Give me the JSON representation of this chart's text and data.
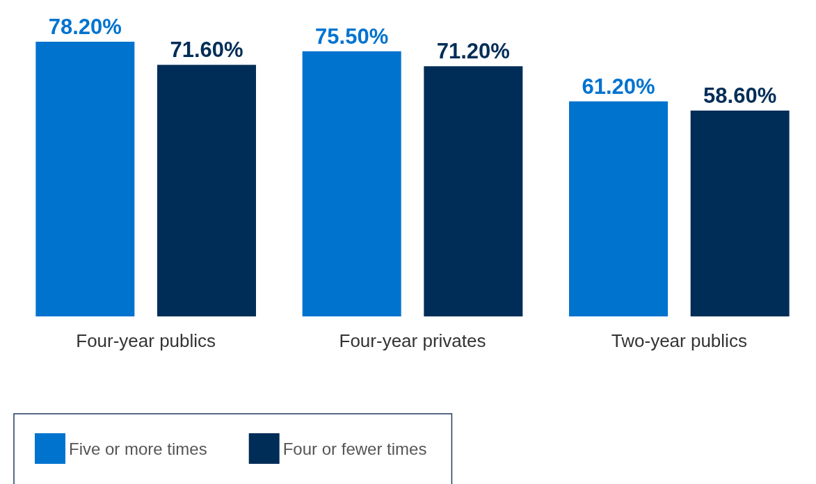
{
  "chart_data": {
    "type": "bar",
    "categories": [
      "Four-year publics",
      "Four-year privates",
      "Two-year publics"
    ],
    "series": [
      {
        "name": "Five or more times",
        "color": "#0073cf",
        "values": [
          78.2,
          75.5,
          61.2
        ],
        "value_labels": [
          "78.20%",
          "75.50%",
          "61.20%"
        ]
      },
      {
        "name": "Four or fewer times",
        "color": "#002d57",
        "values": [
          71.6,
          71.2,
          58.6
        ],
        "value_labels": [
          "71.60%",
          "71.20%",
          "58.60%"
        ]
      }
    ],
    "legend": "bottom left"
  }
}
